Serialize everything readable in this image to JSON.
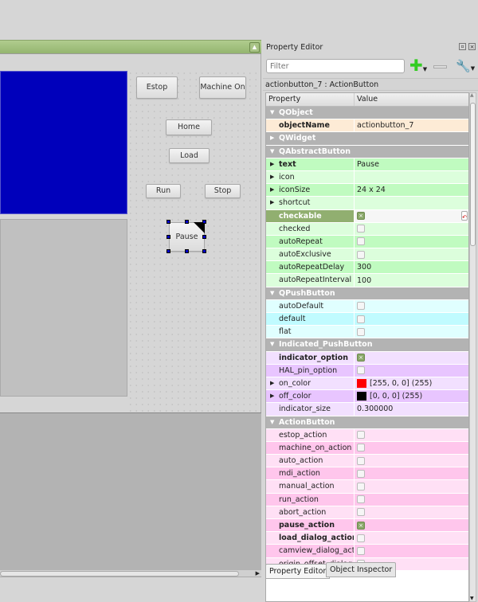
{
  "form": {
    "buttons": [
      {
        "id": "estop",
        "label": "Estop"
      },
      {
        "id": "machine-on",
        "label": "Machine On"
      },
      {
        "id": "home",
        "label": "Home"
      },
      {
        "id": "load",
        "label": "Load"
      },
      {
        "id": "run",
        "label": "Run"
      },
      {
        "id": "stop",
        "label": "Stop"
      },
      {
        "id": "pause",
        "label": "Pause",
        "selected": true
      }
    ],
    "display_color": "#0000bb"
  },
  "panel": {
    "title": "Property Editor",
    "filter_placeholder": "Filter",
    "object_label": "actionbutton_7 : ActionButton",
    "columns": [
      "Property",
      "Value"
    ],
    "rows": [
      {
        "g": 1,
        "name": "QObject",
        "open": 1
      },
      {
        "name": "objectName",
        "value": "actionbutton_7",
        "bold": 1,
        "bg": "#fdebd6"
      },
      {
        "g": 1,
        "name": "QWidget",
        "open": 0
      },
      {
        "g": 1,
        "name": "QAbstractButton",
        "open": 1
      },
      {
        "name": "text",
        "value": "Pause",
        "bold": 1,
        "exp": 1,
        "bg": "#c0fbc0"
      },
      {
        "name": "icon",
        "value": "",
        "exp": 1,
        "bg": "#dcfedc"
      },
      {
        "name": "iconSize",
        "value": "24 x 24",
        "exp": 1,
        "bg": "#c0fbc0"
      },
      {
        "name": "shortcut",
        "value": "",
        "exp": 1,
        "bg": "#dcfedc"
      },
      {
        "name": "checkable",
        "check": true,
        "bold": 1,
        "sel": 1,
        "bg": "#91af70"
      },
      {
        "name": "checked",
        "check": false,
        "bg": "#dcfedc"
      },
      {
        "name": "autoRepeat",
        "check": false,
        "bg": "#c0fbc0"
      },
      {
        "name": "autoExclusive",
        "check": false,
        "bg": "#dcfedc"
      },
      {
        "name": "autoRepeatDelay",
        "value": "300",
        "bg": "#c0fbc0"
      },
      {
        "name": "autoRepeatInterval",
        "value": "100",
        "bg": "#dcfedc"
      },
      {
        "g": 1,
        "name": "QPushButton",
        "open": 1
      },
      {
        "name": "autoDefault",
        "check": false,
        "bg": "#e0ffff"
      },
      {
        "name": "default",
        "check": false,
        "bg": "#c0fbff"
      },
      {
        "name": "flat",
        "check": false,
        "bg": "#e0ffff"
      },
      {
        "g": 1,
        "name": "Indicated_PushButton",
        "open": 1
      },
      {
        "name": "indicator_option",
        "check": true,
        "bold": 1,
        "bg": "#f2e0ff"
      },
      {
        "name": "HAL_pin_option",
        "check": false,
        "bg": "#e8c5ff"
      },
      {
        "name": "on_color",
        "value": "[255, 0, 0] (255)",
        "swatch": "#ff0000",
        "exp": 1,
        "bg": "#f2e0ff"
      },
      {
        "name": "off_color",
        "value": "[0, 0, 0] (255)",
        "swatch": "#000000",
        "exp": 1,
        "bg": "#e8c5ff"
      },
      {
        "name": "indicator_size",
        "value": "0.300000",
        "bg": "#f2e0ff"
      },
      {
        "g": 1,
        "name": "ActionButton",
        "open": 1
      },
      {
        "name": "estop_action",
        "check": false,
        "bg": "#ffe0f5"
      },
      {
        "name": "machine_on_action",
        "check": false,
        "bg": "#ffc6ec"
      },
      {
        "name": "auto_action",
        "check": false,
        "bg": "#ffe0f5"
      },
      {
        "name": "mdi_action",
        "check": false,
        "bg": "#ffc6ec"
      },
      {
        "name": "manual_action",
        "check": false,
        "bg": "#ffe0f5"
      },
      {
        "name": "run_action",
        "check": false,
        "bg": "#ffc6ec"
      },
      {
        "name": "abort_action",
        "check": false,
        "bg": "#ffe0f5"
      },
      {
        "name": "pause_action",
        "check": true,
        "bold": 1,
        "bg": "#ffc6ec"
      },
      {
        "name": "load_dialog_action",
        "check": false,
        "bold": 1,
        "bg": "#ffe0f5"
      },
      {
        "name": "camview_dialog_acti...",
        "check": false,
        "bg": "#ffc6ec"
      },
      {
        "name": "origin_offset_dialog...",
        "check": false,
        "bg": "#ffe0f5"
      }
    ],
    "tabs": [
      "Property Editor",
      "Object Inspector"
    ]
  }
}
